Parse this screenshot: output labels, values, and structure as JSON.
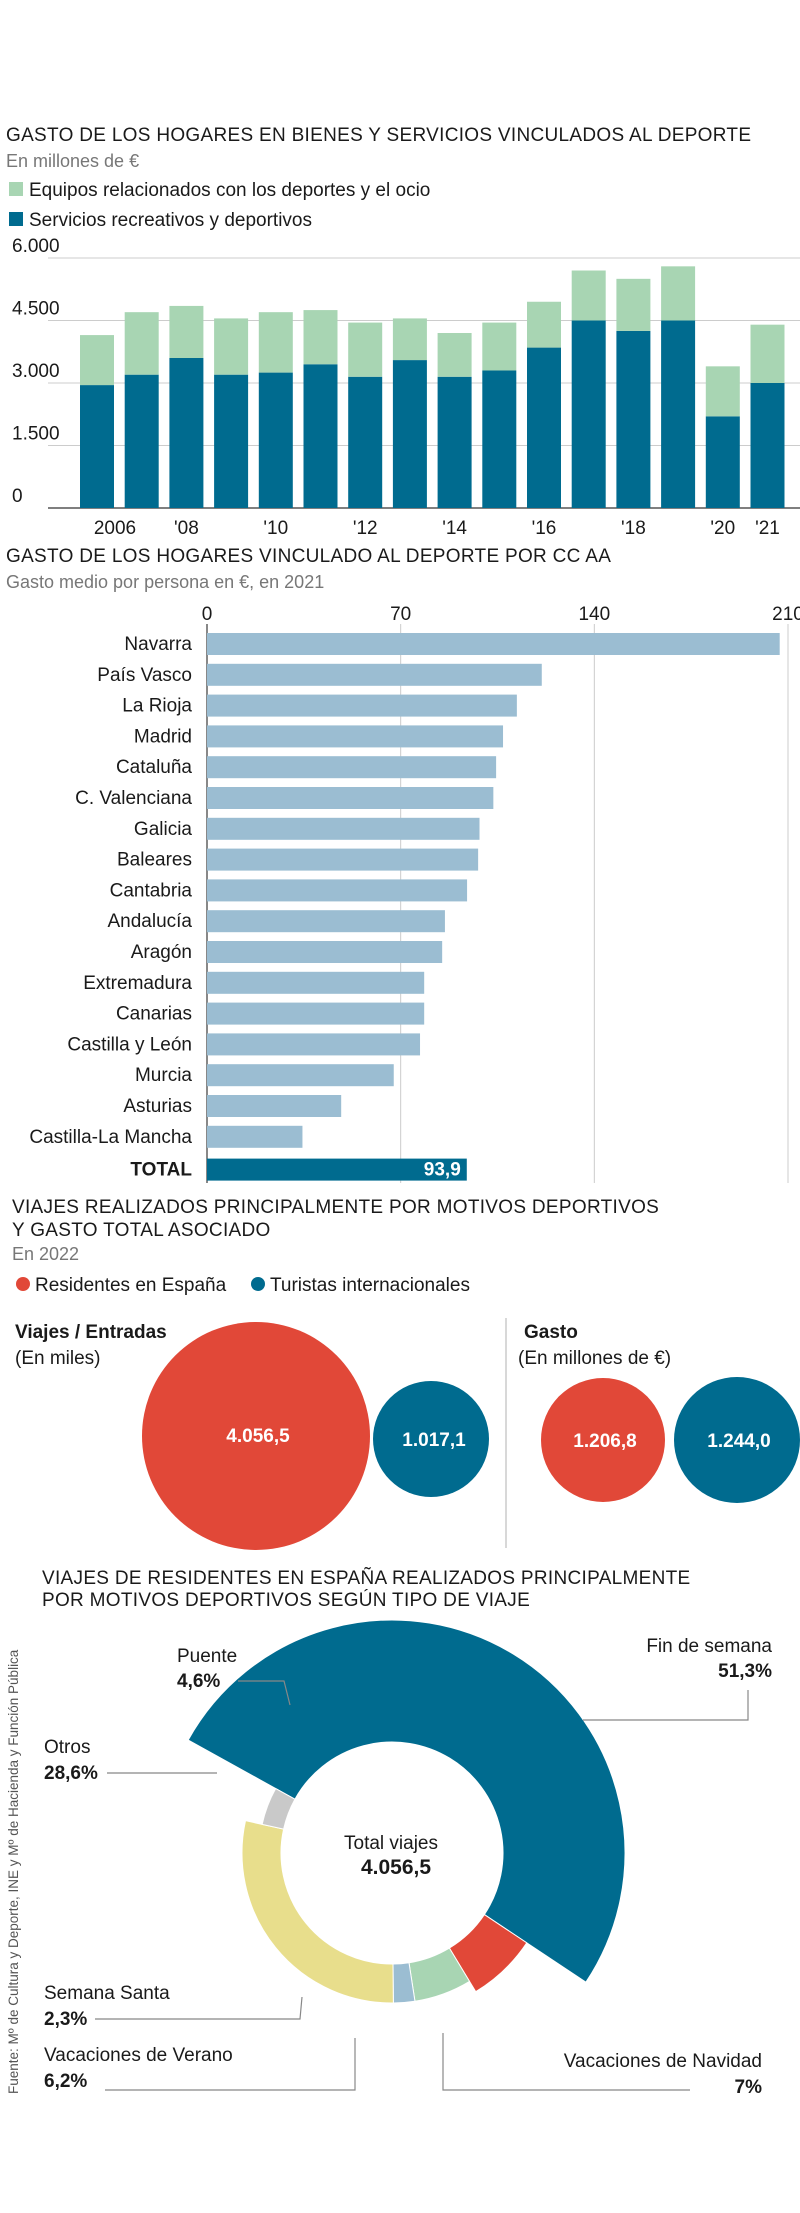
{
  "colors": {
    "dark_teal": "#006b8f",
    "light_green": "#a8d5b3",
    "light_blue": "#9bbdd2",
    "red": "#e14838",
    "yellow": "#e8de8c",
    "grey": "#c9c9c9",
    "grid": "#cccccc"
  },
  "chart_data": [
    {
      "type": "bar",
      "stacked": true,
      "title": "GASTO DE LOS HOGARES EN BIENES Y SERVICIOS VINCULADOS AL DEPORTE",
      "subtitle": "En millones de €",
      "legend": [
        "Equipos relacionados con los deportes y el ocio",
        "Servicios recreativos y deportivos"
      ],
      "ylim": [
        0,
        6000
      ],
      "yticks": [
        0,
        1500,
        3000,
        4500,
        6000
      ],
      "yticklabels": [
        "0",
        "1.500",
        "3.000",
        "4.500",
        "6.000"
      ],
      "categories": [
        "2006",
        "2007",
        "2008",
        "2009",
        "2010",
        "2011",
        "2012",
        "2013",
        "2014",
        "2015",
        "2016",
        "2017",
        "2018",
        "2019",
        "2020",
        "2021"
      ],
      "xticklabels": [
        "2006",
        "",
        "'08",
        "",
        "'10",
        "",
        "'12",
        "",
        "'14",
        "",
        "'16",
        "",
        "'18",
        "",
        "'20",
        "'21"
      ],
      "series": [
        {
          "name": "Servicios recreativos y deportivos",
          "values": [
            2950,
            3200,
            3600,
            3200,
            3250,
            3450,
            3150,
            3550,
            3150,
            3300,
            3850,
            4500,
            4250,
            4500,
            2200,
            3000
          ]
        },
        {
          "name": "Equipos relacionados con los deportes y el ocio",
          "values": [
            1200,
            1500,
            1250,
            1350,
            1450,
            1300,
            1300,
            1000,
            1050,
            1150,
            1100,
            1200,
            1250,
            1300,
            1200,
            1400
          ]
        }
      ]
    },
    {
      "type": "bar",
      "orientation": "horizontal",
      "title": "GASTO DE LOS HOGARES VINCULADO AL DEPORTE POR CC AA",
      "subtitle": "Gasto medio por persona en €, en 2021",
      "xlim": [
        0,
        210
      ],
      "xticks": [
        0,
        70,
        140,
        210
      ],
      "categories": [
        "Navarra",
        "País Vasco",
        "La Rioja",
        "Madrid",
        "Cataluña",
        "C. Valenciana",
        "Galicia",
        "Baleares",
        "Cantabria",
        "Andalucía",
        "Aragón",
        "Extremadura",
        "Canarias",
        "Castilla y León",
        "Murcia",
        "Asturias",
        "Castilla-La Mancha"
      ],
      "values": [
        207,
        121,
        112,
        107,
        104.5,
        103.5,
        98.5,
        98,
        94,
        86,
        85,
        78.5,
        78.5,
        77,
        67.5,
        48.5,
        34.5
      ],
      "total": {
        "label": "TOTAL",
        "value": 93.9,
        "value_label": "93,9"
      }
    },
    {
      "type": "bubble",
      "title_line1": "VIAJES REALIZADOS PRINCIPALMENTE POR MOTIVOS DEPORTIVOS",
      "title_line2": "Y GASTO TOTAL ASOCIADO",
      "subtitle": "En 2022",
      "legend": [
        "Residentes en España",
        "Turistas internacionales"
      ],
      "panels": [
        {
          "title": "Viajes / Entradas",
          "unit": "(En miles)",
          "values": [
            4056.5,
            1017.1
          ],
          "labels": [
            "4.056,5",
            "1.017,1"
          ]
        },
        {
          "title": "Gasto",
          "unit": "(En millones de €)",
          "values": [
            1206.8,
            1244.0
          ],
          "labels": [
            "1.206,8",
            "1.244,0"
          ]
        }
      ]
    },
    {
      "type": "pie",
      "donut": true,
      "title_line1": "VIAJES DE RESIDENTES EN ESPAÑA REALIZADOS PRINCIPALMENTE",
      "title_line2": "POR MOTIVOS DEPORTIVOS SEGÚN TIPO DE VIAJE",
      "center_label": "Total viajes",
      "center_value": "4.056,5",
      "slices": [
        {
          "name": "Fin de semana",
          "value": 51.3,
          "label": "51,3%"
        },
        {
          "name": "Vacaciones de Navidad",
          "value": 7.0,
          "label": "7%"
        },
        {
          "name": "Vacaciones de Verano",
          "value": 6.2,
          "label": "6,2%"
        },
        {
          "name": "Semana Santa",
          "value": 2.3,
          "label": "2,3%"
        },
        {
          "name": "Otros",
          "value": 28.6,
          "label": "28,6%"
        },
        {
          "name": "Puente",
          "value": 4.6,
          "label": "4,6%"
        }
      ]
    }
  ],
  "source": "Fuente: Mº de Cultura y Deporte, INE y Mº de Hacienda y Función Pública"
}
